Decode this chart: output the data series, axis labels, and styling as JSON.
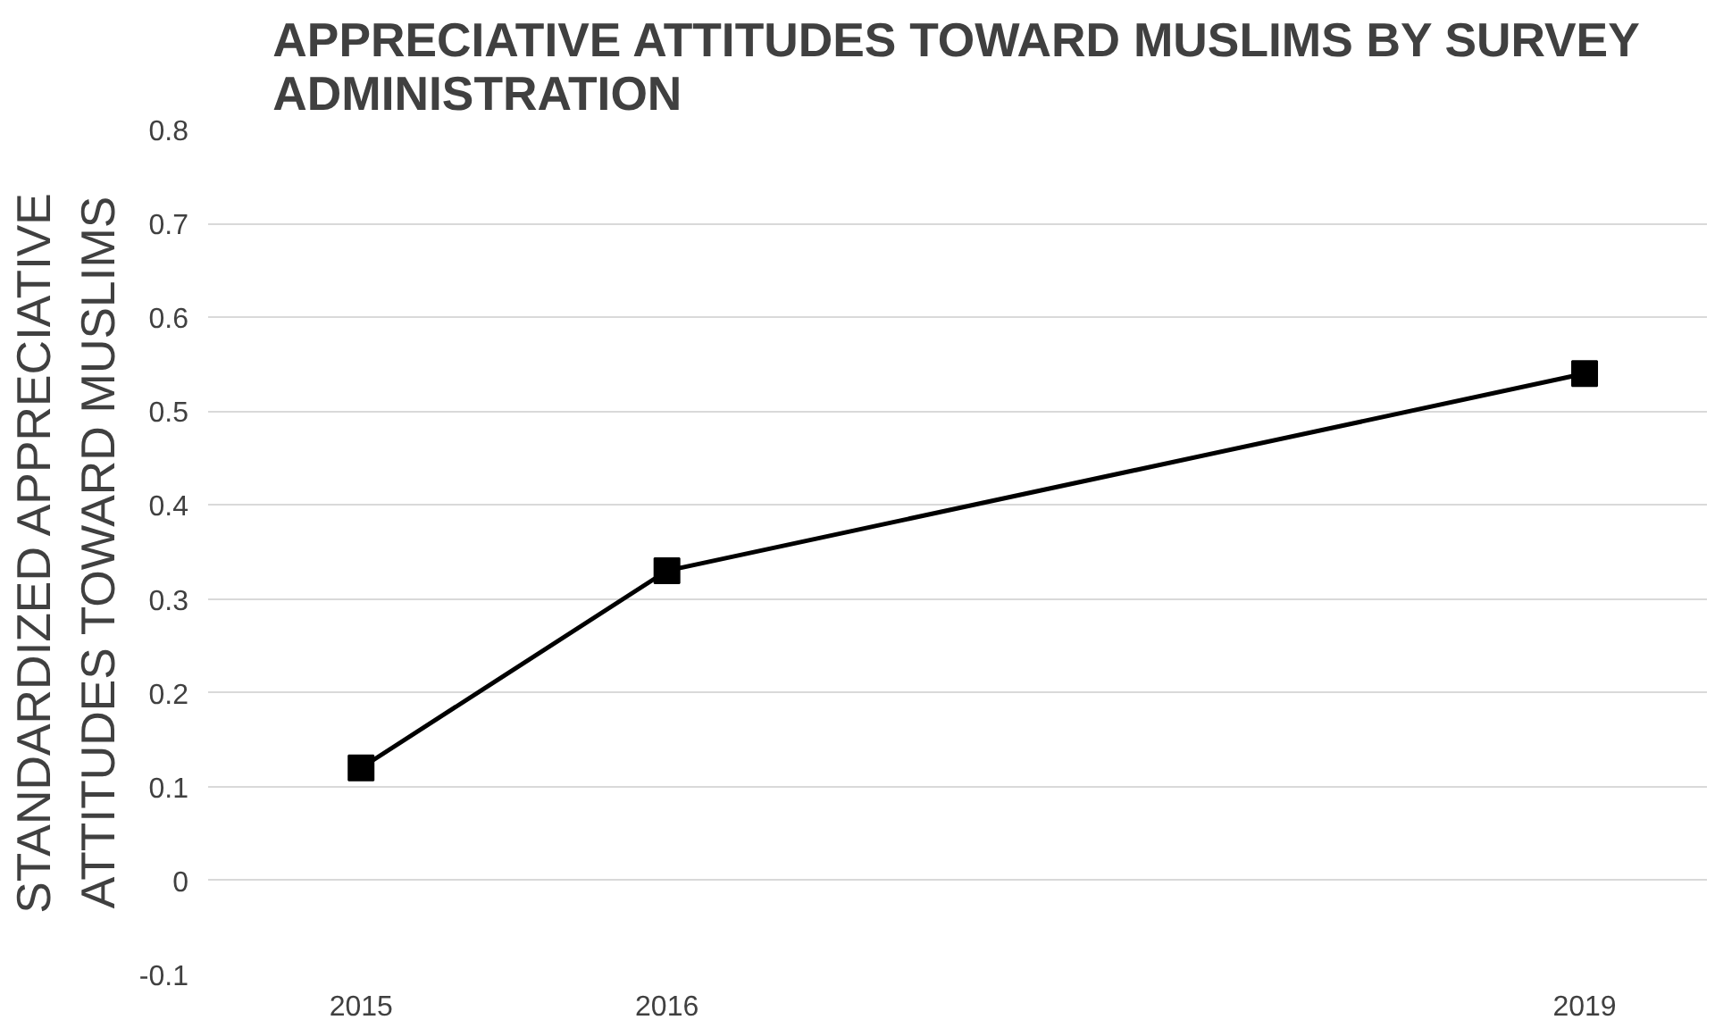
{
  "chart_data": {
    "type": "line",
    "title": "APPRECIATIVE ATTITUDES TOWARD MUSLIMS BY SURVEY ADMINISTRATION",
    "ylabel": "STANDARDIZED APPRECIATIVE ATTITUDES TOWARD MUSLIMS",
    "x": [
      2015,
      2016,
      2019
    ],
    "series": [
      {
        "color": "#000000",
        "values": [
          0.12,
          0.33,
          0.54
        ]
      }
    ],
    "xlim": [
      2014.5,
      2019.4
    ],
    "xticks": [
      2015,
      2016,
      2019
    ],
    "ylim": [
      -0.1,
      0.8
    ],
    "yticks": [
      -0.1,
      0,
      0.1,
      0.2,
      0.3,
      0.4,
      0.5,
      0.6,
      0.7,
      0.8
    ],
    "grid": "y",
    "marker": "square",
    "line_style": "solid"
  }
}
